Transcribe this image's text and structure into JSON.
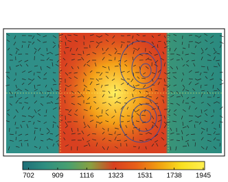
{
  "chart_data": {
    "type": "colorbar",
    "clim": [
      660,
      1955
    ],
    "ticks": [
      702,
      909,
      1116,
      1323,
      1531,
      1738,
      1945
    ],
    "colors": [
      "#1f6f78",
      "#2f8f80",
      "#48a070",
      "#8aa040",
      "#d84020",
      "#e86018",
      "#f0a010",
      "#f8e020",
      "#fff050"
    ]
  }
}
